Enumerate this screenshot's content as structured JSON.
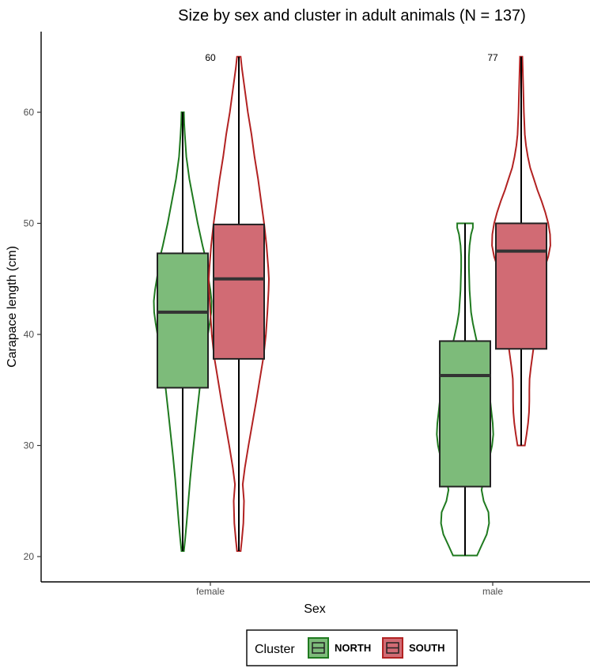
{
  "chart_data": {
    "type": "box",
    "title": "Size by sex and cluster in adult animals (N = 137)",
    "xlabel": "Sex",
    "ylabel": "Carapace length (cm)",
    "categories": [
      "female",
      "male"
    ],
    "ylim": [
      18.5,
      67
    ],
    "yticks": [
      20,
      30,
      40,
      50,
      60
    ],
    "grid": false,
    "legend": {
      "title": "Cluster",
      "position": "bottom"
    },
    "counts": [
      {
        "category": "female",
        "n": "60"
      },
      {
        "category": "male",
        "n": "77"
      }
    ],
    "series": [
      {
        "name": "NORTH",
        "fill": "#7dbb7a",
        "outline": "#1f7a1f",
        "boxes": [
          {
            "category": "female",
            "min": 20.5,
            "q1": 35.2,
            "median": 42.0,
            "q3": 47.3,
            "max": 60.0
          },
          {
            "category": "male",
            "min": 20.1,
            "q1": 26.3,
            "median": 36.3,
            "q3": 39.4,
            "max": 50.0
          }
        ],
        "violins": [
          {
            "category": "female",
            "profile": [
              [
                20.5,
                0.04
              ],
              [
                21.5,
                0.08
              ],
              [
                23,
                0.13
              ],
              [
                25,
                0.19
              ],
              [
                27,
                0.25
              ],
              [
                29,
                0.32
              ],
              [
                31,
                0.4
              ],
              [
                33,
                0.48
              ],
              [
                35,
                0.56
              ],
              [
                37,
                0.66
              ],
              [
                39,
                0.78
              ],
              [
                41,
                0.9
              ],
              [
                42,
                0.95
              ],
              [
                43,
                0.96
              ],
              [
                44,
                0.92
              ],
              [
                45,
                0.86
              ],
              [
                46,
                0.8
              ],
              [
                47,
                0.75
              ],
              [
                48,
                0.66
              ],
              [
                50,
                0.5
              ],
              [
                52,
                0.36
              ],
              [
                54,
                0.22
              ],
              [
                56,
                0.12
              ],
              [
                58,
                0.07
              ],
              [
                59,
                0.05
              ],
              [
                60,
                0.04
              ]
            ]
          },
          {
            "category": "male",
            "profile": [
              [
                20.1,
                0.4
              ],
              [
                21,
                0.55
              ],
              [
                22,
                0.72
              ],
              [
                23,
                0.8
              ],
              [
                24,
                0.78
              ],
              [
                25,
                0.62
              ],
              [
                26,
                0.55
              ],
              [
                27,
                0.62
              ],
              [
                28,
                0.72
              ],
              [
                29,
                0.82
              ],
              [
                30,
                0.9
              ],
              [
                31,
                0.94
              ],
              [
                32,
                0.92
              ],
              [
                33,
                0.88
              ],
              [
                34,
                0.84
              ],
              [
                35,
                0.76
              ],
              [
                36,
                0.66
              ],
              [
                37,
                0.58
              ],
              [
                38,
                0.5
              ],
              [
                39,
                0.42
              ],
              [
                40,
                0.34
              ],
              [
                41,
                0.26
              ],
              [
                42,
                0.2
              ],
              [
                44,
                0.15
              ],
              [
                46,
                0.13
              ],
              [
                47,
                0.13
              ],
              [
                48,
                0.15
              ],
              [
                49,
                0.2
              ],
              [
                49.6,
                0.26
              ],
              [
                50,
                0.26
              ]
            ]
          }
        ]
      },
      {
        "name": "SOUTH",
        "fill": "#d16b74",
        "outline": "#b22222",
        "boxes": [
          {
            "category": "female",
            "min": 20.5,
            "q1": 37.8,
            "median": 45.0,
            "q3": 49.9,
            "max": 65.0
          },
          {
            "category": "male",
            "min": 30.0,
            "q1": 38.7,
            "median": 47.5,
            "q3": 50.0,
            "max": 65.0
          }
        ],
        "violins": [
          {
            "category": "female",
            "profile": [
              [
                20.5,
                0.06
              ],
              [
                21.5,
                0.1
              ],
              [
                23,
                0.15
              ],
              [
                25,
                0.17
              ],
              [
                26.5,
                0.13
              ],
              [
                28,
                0.2
              ],
              [
                30,
                0.32
              ],
              [
                32,
                0.45
              ],
              [
                34,
                0.58
              ],
              [
                36,
                0.7
              ],
              [
                38,
                0.82
              ],
              [
                40,
                0.9
              ],
              [
                42,
                0.95
              ],
              [
                44,
                0.99
              ],
              [
                45,
                1.0
              ],
              [
                46,
                0.98
              ],
              [
                48,
                0.92
              ],
              [
                50,
                0.84
              ],
              [
                52,
                0.74
              ],
              [
                54,
                0.64
              ],
              [
                56,
                0.52
              ],
              [
                58,
                0.42
              ],
              [
                60,
                0.3
              ],
              [
                62,
                0.2
              ],
              [
                64,
                0.1
              ],
              [
                65,
                0.06
              ]
            ]
          },
          {
            "category": "male",
            "profile": [
              [
                30,
                0.12
              ],
              [
                31,
                0.18
              ],
              [
                32,
                0.23
              ],
              [
                33,
                0.26
              ],
              [
                34,
                0.27
              ],
              [
                35,
                0.27
              ],
              [
                36,
                0.28
              ],
              [
                37,
                0.32
              ],
              [
                38,
                0.37
              ],
              [
                39,
                0.42
              ],
              [
                40,
                0.48
              ],
              [
                41,
                0.52
              ],
              [
                42,
                0.54
              ],
              [
                43,
                0.55
              ],
              [
                44,
                0.58
              ],
              [
                45,
                0.66
              ],
              [
                46,
                0.78
              ],
              [
                47,
                0.9
              ],
              [
                48,
                0.97
              ],
              [
                49,
                0.96
              ],
              [
                50,
                0.9
              ],
              [
                51,
                0.8
              ],
              [
                52,
                0.68
              ],
              [
                53,
                0.54
              ],
              [
                54,
                0.42
              ],
              [
                55,
                0.3
              ],
              [
                56,
                0.22
              ],
              [
                57,
                0.16
              ],
              [
                58,
                0.12
              ],
              [
                60,
                0.09
              ],
              [
                62,
                0.07
              ],
              [
                64,
                0.05
              ],
              [
                65,
                0.04
              ]
            ]
          }
        ]
      }
    ]
  }
}
